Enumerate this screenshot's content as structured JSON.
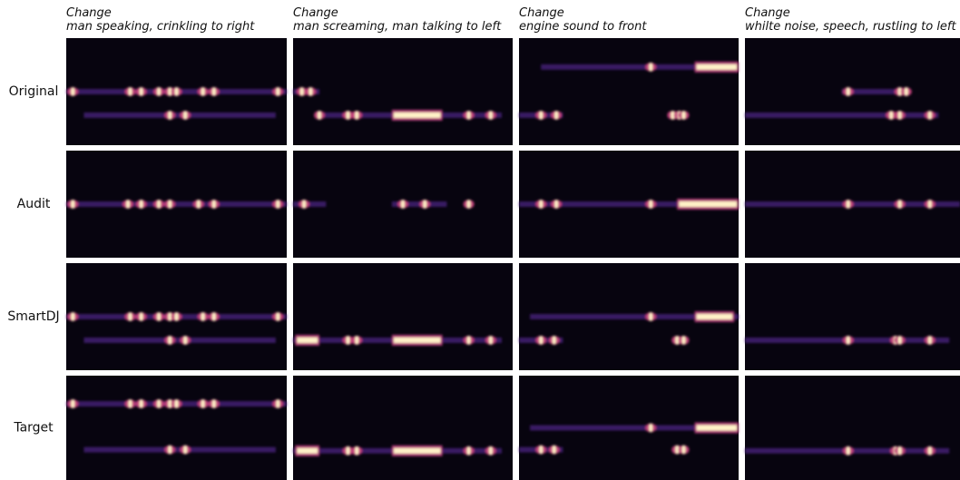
{
  "columns": [
    {
      "prefix": "Change",
      "caption": "man speaking, crinkling to right"
    },
    {
      "prefix": "Change",
      "caption": "man screaming, man talking to left"
    },
    {
      "prefix": "Change",
      "caption": "engine sound to front"
    },
    {
      "prefix": "Change",
      "caption": "whilte noise, speech, rustling to left"
    }
  ],
  "rows": [
    "Original",
    "Audit",
    "SmartDJ",
    "Target"
  ]
}
